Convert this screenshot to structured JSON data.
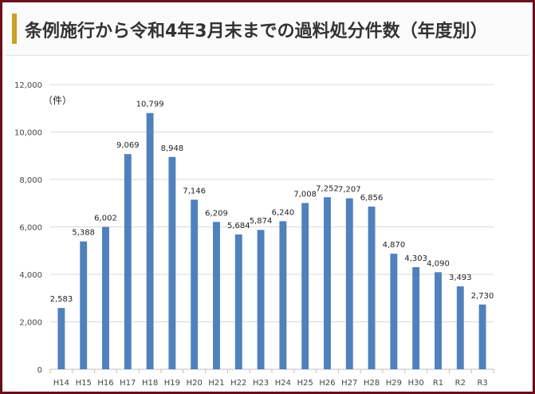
{
  "title": "条例施行から令和4年3月末までの過料処分件数（年度別）",
  "colors": {
    "frame": "#6b0f1a",
    "accent": "#c9a227",
    "bar": "#4f81bd",
    "grid": "#d9d9d9"
  },
  "chart_data": {
    "type": "bar",
    "title": "条例施行から令和4年3月末までの過料処分件数（年度別）",
    "ylabel": "（件）",
    "xlabel": "",
    "categories": [
      "H14",
      "H15",
      "H16",
      "H17",
      "H18",
      "H19",
      "H20",
      "H21",
      "H22",
      "H23",
      "H24",
      "H25",
      "H26",
      "H27",
      "H28",
      "H29",
      "H30",
      "R1",
      "R2",
      "R3"
    ],
    "values": [
      2583,
      5388,
      6002,
      9069,
      10799,
      8948,
      7146,
      6209,
      5684,
      5874,
      6240,
      7008,
      7252,
      7207,
      6856,
      4870,
      4303,
      4090,
      3493,
      2730
    ],
    "value_labels": [
      "2,583",
      "5,388",
      "6,002",
      "9,069",
      "10,799",
      "8,948",
      "7,146",
      "6,209",
      "5,684",
      "5,874",
      "6,240",
      "7,008",
      "7,252",
      "7,207",
      "6,856",
      "4,870",
      "4,303",
      "4,090",
      "3,493",
      "2,730"
    ],
    "ylim": [
      0,
      12000
    ],
    "yticks": [
      0,
      2000,
      4000,
      6000,
      8000,
      10000,
      12000
    ],
    "ytick_labels": [
      "0",
      "2,000",
      "4,000",
      "6,000",
      "8,000",
      "10,000",
      "12,000"
    ],
    "grid": true,
    "legend": "none"
  }
}
